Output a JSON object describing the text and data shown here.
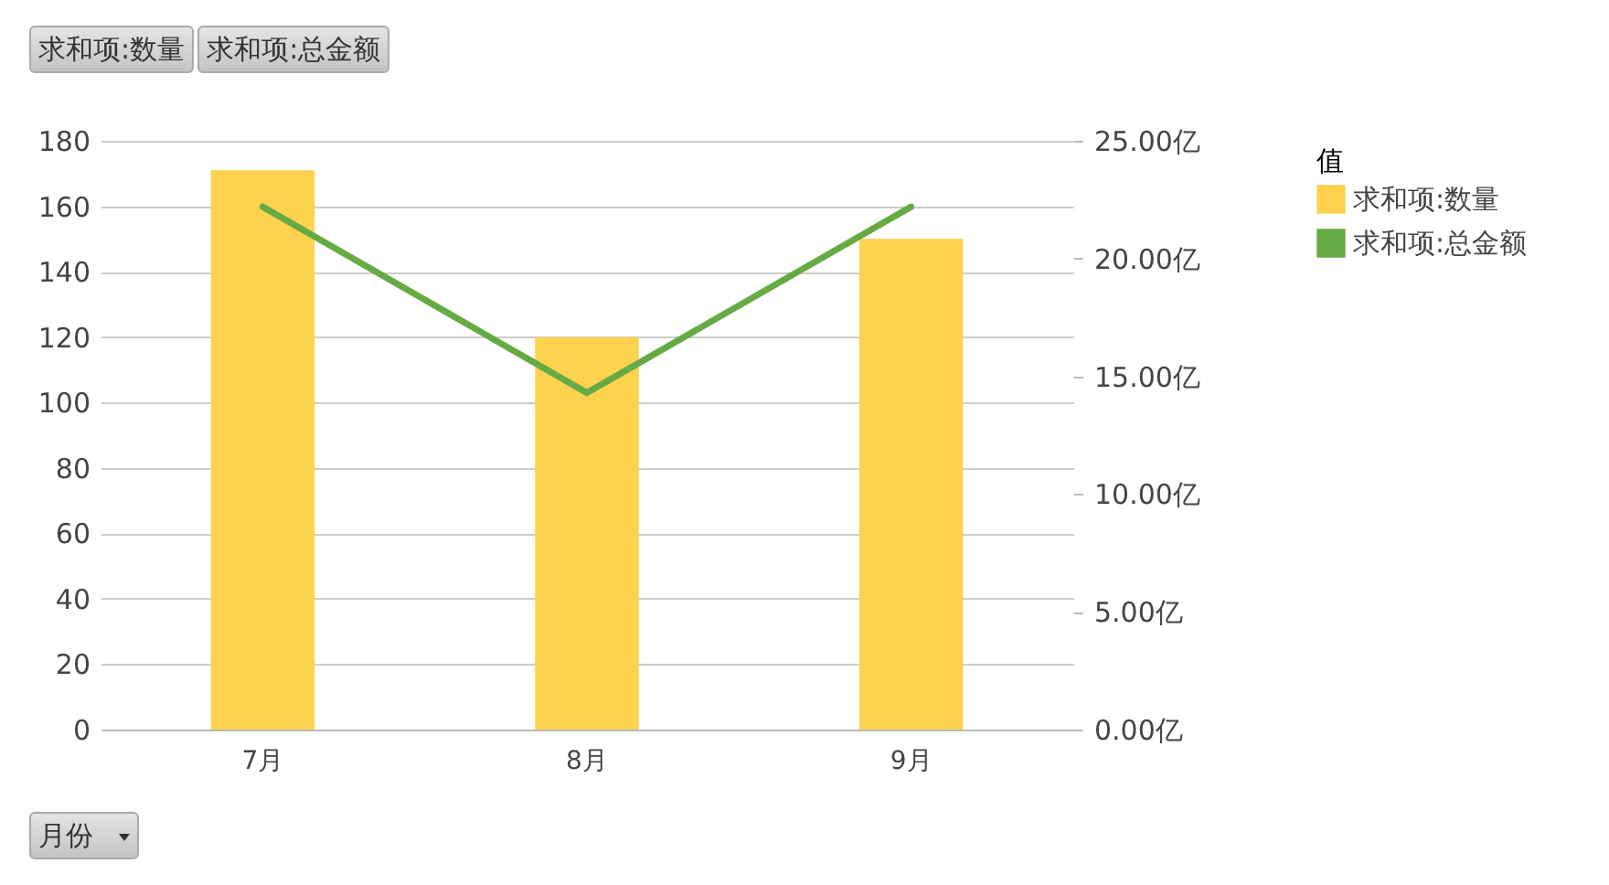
{
  "chart_data": {
    "type": "bar",
    "categories": [
      "7月",
      "8月",
      "9月"
    ],
    "series": [
      {
        "name": "求和项:数量",
        "color": "#fdd24e",
        "values": [
          171,
          120,
          150
        ]
      },
      {
        "name": "求和项:总金额",
        "type": "line",
        "axis": "y2",
        "color": "#66aa44",
        "values": [
          22.2,
          14.3,
          22.2
        ]
      }
    ],
    "ylim": [
      0,
      180
    ],
    "yticks": [
      0,
      20,
      40,
      60,
      80,
      100,
      120,
      140,
      160,
      180
    ],
    "y2lim": [
      0,
      25
    ],
    "y2ticks": [
      {
        "value": 0,
        "label": "0.00亿"
      },
      {
        "value": 5,
        "label": "5.00亿"
      },
      {
        "value": 10,
        "label": "10.00亿"
      },
      {
        "value": 15,
        "label": "15.00亿"
      },
      {
        "value": 20,
        "label": "20.00亿"
      },
      {
        "value": 25,
        "label": "25.00亿"
      }
    ],
    "grid": "y",
    "legend": "right",
    "legend_title": "值",
    "xlabel": "月份",
    "annotations": [
      "求和项:数量",
      "求和项:总金额"
    ]
  }
}
